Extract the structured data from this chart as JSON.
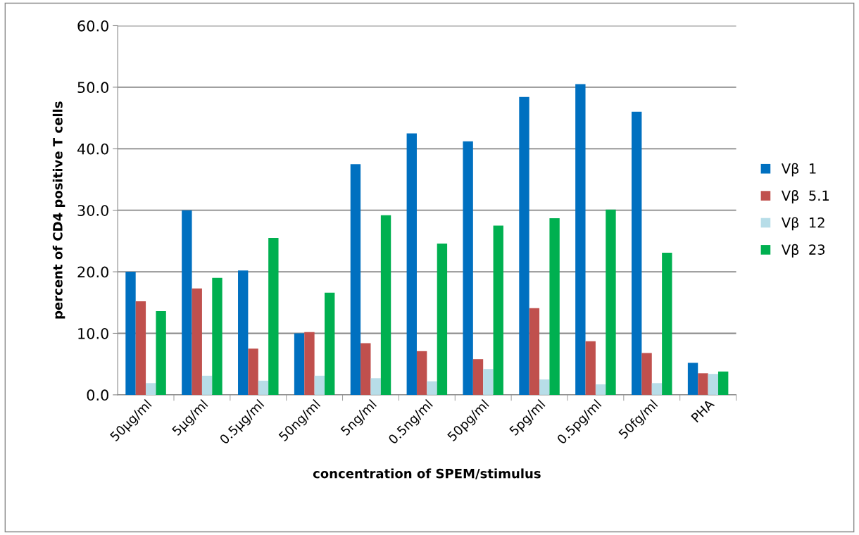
{
  "chart_data": {
    "type": "bar",
    "xlabel": "concentration of SPEM/stimulus",
    "ylabel": "percent of CD4 positive T cells",
    "categories": [
      "50µg/ml",
      "5µg/ml",
      "0.5µg/ml",
      "50ng/ml",
      "5ng/ml",
      "0.5ng/ml",
      "50pg/ml",
      "5pg/ml",
      "0.5pg/ml",
      "50fg/ml",
      "PHA"
    ],
    "series": [
      {
        "name": "Vβ  1",
        "color": "#0070c0",
        "values": [
          20.0,
          30.0,
          20.2,
          10.0,
          37.5,
          42.5,
          41.2,
          48.4,
          50.5,
          46.0,
          5.2
        ]
      },
      {
        "name": "Vβ  5.1",
        "color": "#c0504d",
        "values": [
          15.2,
          17.3,
          7.5,
          10.2,
          8.4,
          7.1,
          5.8,
          14.1,
          8.7,
          6.8,
          3.5
        ]
      },
      {
        "name": "Vβ  12",
        "color": "#b7dde8",
        "values": [
          1.9,
          3.1,
          2.3,
          3.1,
          2.7,
          2.2,
          4.2,
          2.5,
          1.7,
          1.9,
          3.4
        ]
      },
      {
        "name": "Vβ  23",
        "color": "#00b050",
        "values": [
          13.6,
          19.0,
          25.5,
          16.6,
          29.2,
          24.6,
          27.5,
          28.7,
          30.1,
          23.1,
          3.8
        ]
      }
    ],
    "ylim": [
      0,
      60
    ],
    "yticks": [
      {
        "value": 0,
        "label": "0.0"
      },
      {
        "value": 10,
        "label": "10.0"
      },
      {
        "value": 20,
        "label": "20.0"
      },
      {
        "value": 30,
        "label": "30.0"
      },
      {
        "value": 40,
        "label": "40.0"
      },
      {
        "value": 50,
        "label": "50.0"
      },
      {
        "value": 60,
        "label": "60.0"
      }
    ],
    "grid": "y",
    "legend": "right"
  }
}
